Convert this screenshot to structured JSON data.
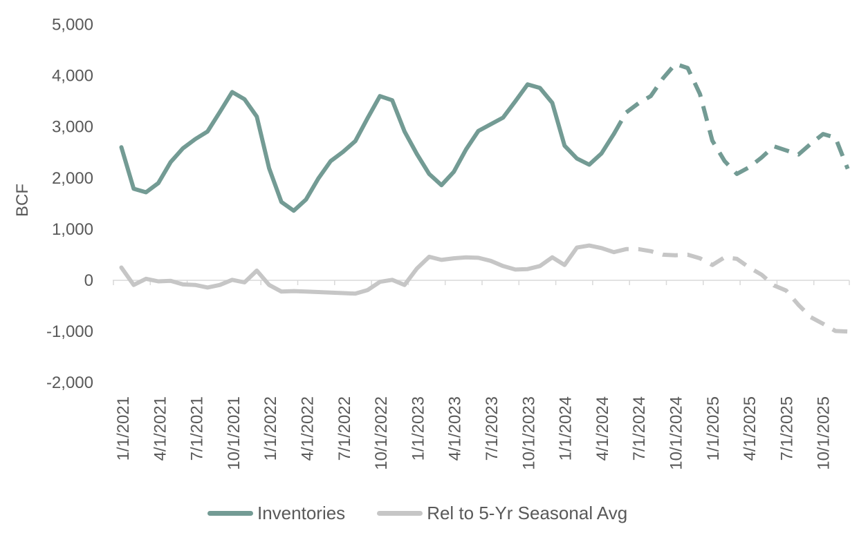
{
  "chart_data": {
    "type": "line",
    "xlabel": "",
    "ylabel": "BCF",
    "ylim": [
      -2000,
      5000
    ],
    "yticks": [
      "5,000",
      "4,000",
      "3,000",
      "2,000",
      "1,000",
      "0",
      "-1,000",
      "-2,000"
    ],
    "ytick_values": [
      5000,
      4000,
      3000,
      2000,
      1000,
      0,
      -1000,
      -2000
    ],
    "xticks": [
      "1/1/2021",
      "4/1/2021",
      "7/1/2021",
      "10/1/2021",
      "1/1/2022",
      "4/1/2022",
      "7/1/2022",
      "10/1/2022",
      "1/1/2023",
      "4/1/2023",
      "7/1/2023",
      "10/1/2023",
      "1/1/2024",
      "4/1/2024",
      "7/1/2024",
      "10/1/2024",
      "1/1/2025",
      "4/1/2025",
      "7/1/2025",
      "10/1/2025"
    ],
    "x": [
      "2021-01",
      "2021-02",
      "2021-03",
      "2021-04",
      "2021-05",
      "2021-06",
      "2021-07",
      "2021-08",
      "2021-09",
      "2021-10",
      "2021-11",
      "2021-12",
      "2022-01",
      "2022-02",
      "2022-03",
      "2022-04",
      "2022-05",
      "2022-06",
      "2022-07",
      "2022-08",
      "2022-09",
      "2022-10",
      "2022-11",
      "2022-12",
      "2023-01",
      "2023-02",
      "2023-03",
      "2023-04",
      "2023-05",
      "2023-06",
      "2023-07",
      "2023-08",
      "2023-09",
      "2023-10",
      "2023-11",
      "2023-12",
      "2024-01",
      "2024-02",
      "2024-03",
      "2024-04",
      "2024-05",
      "2024-06",
      "2024-07",
      "2024-08",
      "2024-09",
      "2024-10",
      "2024-11",
      "2024-12",
      "2025-01",
      "2025-02",
      "2025-03",
      "2025-04",
      "2025-05",
      "2025-06",
      "2025-07",
      "2025-08",
      "2025-09",
      "2025-10",
      "2025-11",
      "2025-12"
    ],
    "forecast_start": "2024-05",
    "series": [
      {
        "name": "Inventories",
        "color": "#739b94",
        "values": [
          2600,
          1790,
          1720,
          1900,
          2310,
          2580,
          2760,
          2910,
          3290,
          3680,
          3540,
          3200,
          2190,
          1530,
          1360,
          1580,
          1990,
          2330,
          2510,
          2720,
          3170,
          3600,
          3520,
          2910,
          2470,
          2080,
          1860,
          2120,
          2560,
          2920,
          3050,
          3180,
          3500,
          3830,
          3760,
          3470,
          2630,
          2380,
          2260,
          2480,
          2860,
          3280,
          3460,
          3600,
          3950,
          4230,
          4150,
          3640,
          2730,
          2330,
          2080,
          2210,
          2400,
          2620,
          2540,
          2460,
          2670,
          2860,
          2790,
          2180
        ]
      },
      {
        "name": "Rel to 5-Yr Seasonal Avg",
        "color": "#c6c6c6",
        "values": [
          250,
          -90,
          30,
          -20,
          -10,
          -80,
          -90,
          -140,
          -90,
          10,
          -40,
          190,
          -90,
          -220,
          -210,
          -220,
          -230,
          -240,
          -250,
          -260,
          -190,
          -30,
          10,
          -90,
          230,
          460,
          400,
          430,
          450,
          440,
          380,
          280,
          210,
          220,
          280,
          450,
          300,
          640,
          680,
          630,
          550,
          610,
          610,
          570,
          500,
          490,
          500,
          430,
          300,
          450,
          420,
          250,
          110,
          -100,
          -200,
          -480,
          -720,
          -850,
          -990,
          -1000
        ]
      }
    ],
    "legend": {
      "position": "bottom"
    },
    "grid": false
  }
}
